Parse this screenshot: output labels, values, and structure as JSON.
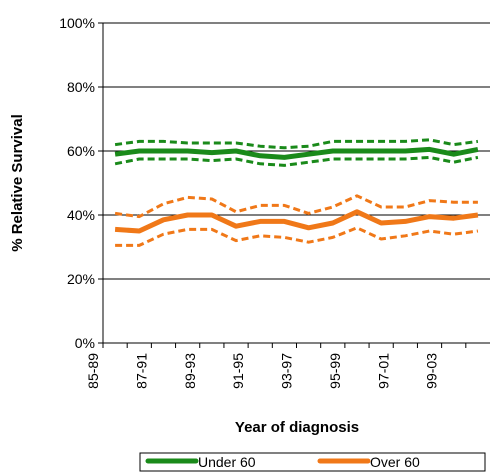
{
  "chart_data": {
    "type": "line",
    "y_label": "% Relative Survival",
    "x_label": "Year of diagnosis",
    "categories": [
      "85-89",
      null,
      "87-91",
      null,
      "89-93",
      null,
      "91-95",
      null,
      "93-97",
      null,
      "95-99",
      null,
      "97-01",
      null,
      "99-03",
      null
    ],
    "ylim": [
      0,
      100
    ],
    "yticks": [
      {
        "value": 0,
        "label": "0%"
      },
      {
        "value": 20,
        "label": "20%"
      },
      {
        "value": 40,
        "label": "40%"
      },
      {
        "value": 60,
        "label": "60%"
      },
      {
        "value": 80,
        "label": "80%"
      },
      {
        "value": 100,
        "label": "100%"
      }
    ],
    "grid": true,
    "legend": "bottom",
    "series": [
      {
        "name": "Under 60",
        "color": "#1a8a1a",
        "values": [
          59,
          60,
          60,
          60,
          59.5,
          60,
          58.5,
          58,
          59,
          60,
          60,
          60,
          60,
          60.5,
          59,
          60.5
        ]
      },
      {
        "color": "#1a8a1a",
        "dashed": true,
        "values": [
          62,
          63,
          63,
          62.5,
          62.5,
          62.5,
          61.5,
          61,
          61.5,
          63,
          63,
          63,
          63,
          63.5,
          62,
          63
        ]
      },
      {
        "color": "#1a8a1a",
        "dashed": true,
        "values": [
          56,
          57.5,
          57.5,
          57.5,
          57,
          57.5,
          56,
          55.5,
          56.5,
          57.5,
          57.5,
          57.5,
          57.5,
          58,
          56.5,
          58
        ]
      },
      {
        "name": "Over 60",
        "color": "#f07818",
        "values": [
          35.5,
          35,
          38.5,
          40,
          40,
          36.5,
          38,
          38,
          36,
          37.5,
          41,
          37.5,
          38,
          39.5,
          39,
          40
        ]
      },
      {
        "color": "#f07818",
        "dashed": true,
        "values": [
          40.5,
          39.5,
          43.5,
          45.5,
          45,
          41,
          43,
          43,
          40.5,
          42.5,
          46,
          42.5,
          42.5,
          44.5,
          44,
          44
        ]
      },
      {
        "color": "#f07818",
        "dashed": true,
        "values": [
          30.5,
          30.5,
          34,
          35.5,
          35.5,
          32,
          33.5,
          33,
          31.5,
          33,
          36,
          32.5,
          33.5,
          35,
          34,
          35
        ]
      }
    ]
  }
}
